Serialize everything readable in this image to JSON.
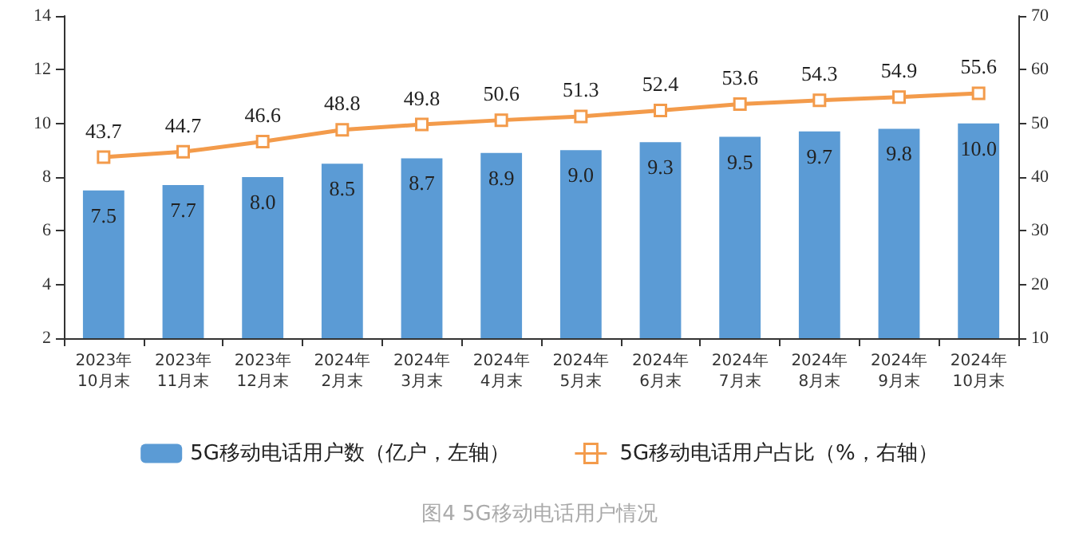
{
  "chart_data": {
    "type": "bar",
    "title": "图4 5G移动电话用户情况",
    "categories": [
      "2023年\n10月末",
      "2023年\n11月末",
      "2023年\n12月末",
      "2024年\n2月末",
      "2024年\n3月末",
      "2024年\n4月末",
      "2024年\n5月末",
      "2024年\n6月末",
      "2024年\n7月末",
      "2024年\n8月末",
      "2024年\n9月末",
      "2024年\n10月末"
    ],
    "series": [
      {
        "name": "5G移动电话用户数（亿户，左轴）",
        "color": "#5b9bd5",
        "values": [
          7.5,
          7.7,
          8.0,
          8.5,
          8.7,
          8.9,
          9.0,
          9.3,
          9.5,
          9.7,
          9.8,
          10.0
        ],
        "value_labels": [
          "7.5",
          "7.7",
          "8.0",
          "8.5",
          "8.7",
          "8.9",
          "9.0",
          "9.3",
          "9.5",
          "9.7",
          "9.8",
          "10.0"
        ]
      },
      {
        "name": "5G移动电话用户占比（%，右轴）",
        "type": "line",
        "axis": "y2",
        "color": "#f39b4b",
        "marker": "square",
        "values": [
          43.7,
          44.7,
          46.6,
          48.8,
          49.8,
          50.6,
          51.3,
          52.4,
          53.6,
          54.3,
          54.9,
          55.6
        ],
        "value_labels": [
          "43.7",
          "44.7",
          "46.6",
          "48.8",
          "49.8",
          "50.6",
          "51.3",
          "52.4",
          "53.6",
          "54.3",
          "54.9",
          "55.6"
        ]
      }
    ],
    "ylim": [
      2,
      14
    ],
    "yticks": [
      2,
      4,
      6,
      8,
      10,
      12,
      14
    ],
    "y2lim": [
      10,
      70
    ],
    "y2ticks": [
      10,
      20,
      30,
      40,
      50,
      60,
      70
    ],
    "grid": false,
    "legend": "bottom"
  }
}
